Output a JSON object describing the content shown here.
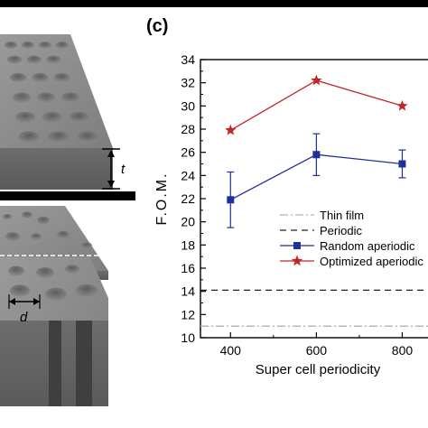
{
  "panel_label": "(c)",
  "left_figure": {
    "label_t": "t",
    "label_d": "d"
  },
  "colors": {
    "thin_film": "#b0b0b0",
    "periodic": "#222222",
    "random": "#1f2f9c",
    "optimized": "#c0262a"
  },
  "chart_data": {
    "type": "line",
    "xlabel": "Super cell periodicity",
    "ylabel": "F.O.M.",
    "xlim": [
      330,
      860
    ],
    "ylim": [
      10,
      34
    ],
    "x_ticks": [
      400,
      600,
      800
    ],
    "x_tick_labels": [
      "400",
      "600",
      "800"
    ],
    "y_ticks": [
      10,
      12,
      14,
      16,
      18,
      20,
      22,
      24,
      26,
      28,
      30,
      32,
      34
    ],
    "y_tick_labels": [
      "10",
      "12",
      "14",
      "16",
      "18",
      "20",
      "22",
      "24",
      "26",
      "28",
      "30",
      "32",
      "34"
    ],
    "series": [
      {
        "name": "Thin film",
        "style": "dash-dot",
        "color": "#b0b0b0",
        "x": [
          330,
          860
        ],
        "y": [
          11.0,
          11.0
        ]
      },
      {
        "name": "Periodic",
        "style": "dashed",
        "color": "#222222",
        "x": [
          330,
          860
        ],
        "y": [
          14.1,
          14.1
        ]
      },
      {
        "name": "Random aperiodic",
        "style": "solid",
        "marker": "square",
        "color": "#1f2f9c",
        "x": [
          400,
          600,
          800
        ],
        "y": [
          21.9,
          25.8,
          25.0
        ],
        "error": [
          2.4,
          1.8,
          1.2
        ]
      },
      {
        "name": "Optimized aperiodic",
        "style": "solid",
        "marker": "star",
        "color": "#c0262a",
        "x": [
          400,
          600,
          800
        ],
        "y": [
          27.9,
          32.2,
          30.0
        ]
      }
    ],
    "legend": {
      "placement": "center-right",
      "entries": [
        "Thin film",
        "Periodic",
        "Random aperiodic",
        "Optimized aperiodic"
      ]
    }
  }
}
